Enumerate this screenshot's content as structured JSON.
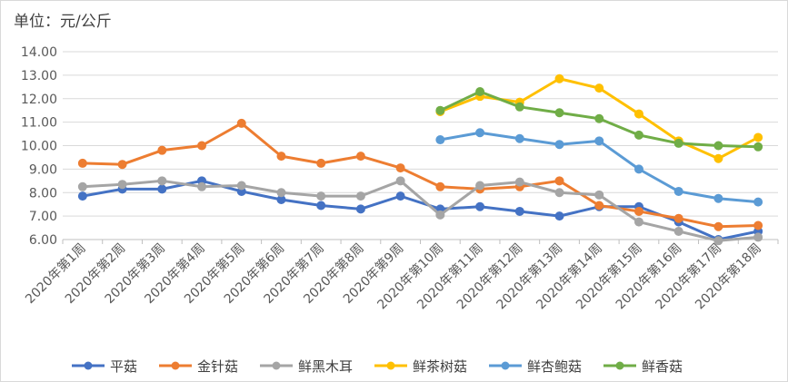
{
  "chart_data": {
    "type": "line",
    "unit_label": "单位：元/公斤",
    "ylim": [
      6.0,
      14.0
    ],
    "yticks": [
      "6.00",
      "7.00",
      "8.00",
      "9.00",
      "10.00",
      "11.00",
      "12.00",
      "13.00",
      "14.00"
    ],
    "grid": "horizontal",
    "legend_position": "bottom",
    "categories": [
      "2020年第1周",
      "2020年第2周",
      "2020年第3周",
      "2020年第4周",
      "2020年第5周",
      "2020年第6周",
      "2020年第7周",
      "2020年第8周",
      "2020年第9周",
      "2020年第10周",
      "2020年第11周",
      "2020年第12周",
      "2020年第13周",
      "2020年第14周",
      "2020年第15周",
      "2020年第16周",
      "2020年第17周",
      "2020年第18周"
    ],
    "series": [
      {
        "name": "平菇",
        "color": "#4472C4",
        "values": [
          7.85,
          8.15,
          8.15,
          8.5,
          8.05,
          7.7,
          7.45,
          7.3,
          7.85,
          7.3,
          7.4,
          7.2,
          7.0,
          7.4,
          7.4,
          6.75,
          6.0,
          6.35
        ]
      },
      {
        "name": "金针菇",
        "color": "#ED7D31",
        "values": [
          9.25,
          9.2,
          9.8,
          10.0,
          10.95,
          9.55,
          9.25,
          9.55,
          9.05,
          8.25,
          8.15,
          8.25,
          8.5,
          7.45,
          7.2,
          6.9,
          6.55,
          6.6
        ]
      },
      {
        "name": "鲜黑木耳",
        "color": "#A5A5A5",
        "values": [
          8.25,
          8.35,
          8.5,
          8.25,
          8.3,
          8.0,
          7.85,
          7.85,
          8.5,
          7.05,
          8.3,
          8.45,
          8.0,
          7.9,
          6.75,
          6.35,
          5.95,
          6.1
        ]
      },
      {
        "name": "鲜茶树菇",
        "color": "#FFC000",
        "values": [
          null,
          null,
          null,
          null,
          null,
          null,
          null,
          null,
          null,
          11.45,
          12.1,
          11.85,
          12.85,
          12.45,
          11.35,
          10.2,
          9.45,
          10.35
        ]
      },
      {
        "name": "鲜杏鲍菇",
        "color": "#5B9BD5",
        "values": [
          null,
          null,
          null,
          null,
          null,
          null,
          null,
          null,
          null,
          10.25,
          10.55,
          10.3,
          10.05,
          10.2,
          9.0,
          8.05,
          7.75,
          7.6
        ]
      },
      {
        "name": "鲜香菇",
        "color": "#70AD47",
        "values": [
          null,
          null,
          null,
          null,
          null,
          null,
          null,
          null,
          null,
          11.5,
          12.3,
          11.65,
          11.4,
          11.15,
          10.45,
          10.1,
          10.0,
          9.95
        ]
      }
    ]
  }
}
